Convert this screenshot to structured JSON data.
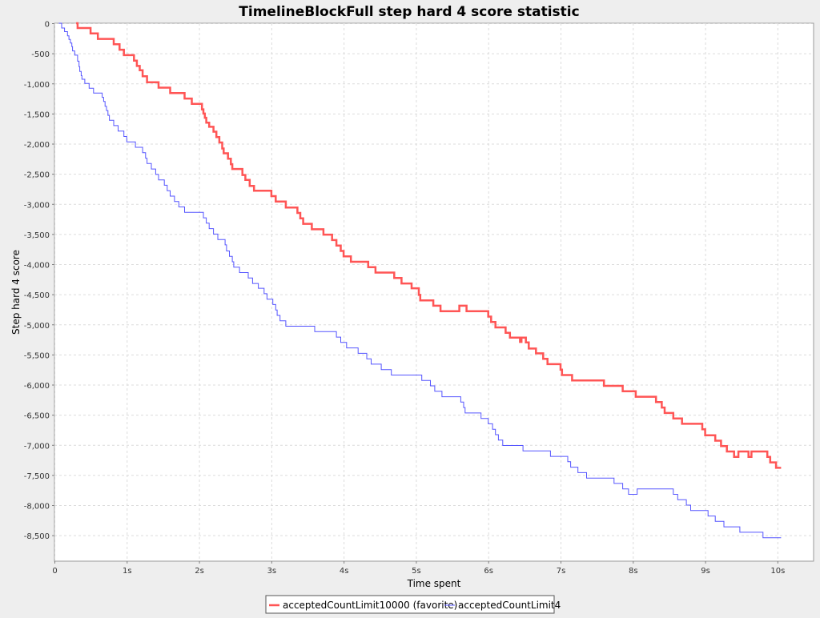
{
  "chart_data": {
    "type": "line",
    "title": "TimelineBlockFull step hard 4 score statistic",
    "xlabel": "Time spent",
    "ylabel": "Step hard 4 score",
    "xlim": [
      0,
      10.5
    ],
    "ylim": [
      -8930,
      0
    ],
    "x_ticks": [
      {
        "value": 0,
        "label": "0"
      },
      {
        "value": 1,
        "label": "1s"
      },
      {
        "value": 2,
        "label": "2s"
      },
      {
        "value": 3,
        "label": "3s"
      },
      {
        "value": 4,
        "label": "4s"
      },
      {
        "value": 5,
        "label": "5s"
      },
      {
        "value": 6,
        "label": "6s"
      },
      {
        "value": 7,
        "label": "7s"
      },
      {
        "value": 8,
        "label": "8s"
      },
      {
        "value": 9,
        "label": "9s"
      },
      {
        "value": 10,
        "label": "10s"
      }
    ],
    "y_ticks": [
      {
        "value": 0,
        "label": "0"
      },
      {
        "value": -500,
        "label": "-500"
      },
      {
        "value": -1000,
        "label": "-1,000"
      },
      {
        "value": -1500,
        "label": "-1,500"
      },
      {
        "value": -2000,
        "label": "-2,000"
      },
      {
        "value": -2500,
        "label": "-2,500"
      },
      {
        "value": -3000,
        "label": "-3,000"
      },
      {
        "value": -3500,
        "label": "-3,500"
      },
      {
        "value": -4000,
        "label": "-4,000"
      },
      {
        "value": -4500,
        "label": "-4,500"
      },
      {
        "value": -5000,
        "label": "-5,000"
      },
      {
        "value": -5500,
        "label": "-5,500"
      },
      {
        "value": -6000,
        "label": "-6,000"
      },
      {
        "value": -6500,
        "label": "-6,500"
      },
      {
        "value": -7000,
        "label": "-7,000"
      },
      {
        "value": -7500,
        "label": "-7,500"
      },
      {
        "value": -8000,
        "label": "-8,000"
      },
      {
        "value": -8500,
        "label": "-8,500"
      }
    ],
    "grid": true,
    "legend_position": "bottom-center",
    "series": [
      {
        "name": "acceptedCountLimit10000 (favorite)",
        "color": "#ff5555",
        "step": true,
        "points": [
          [
            0.3,
            0
          ],
          [
            0.32,
            -80
          ],
          [
            0.5,
            -170
          ],
          [
            0.6,
            -260
          ],
          [
            0.82,
            -350
          ],
          [
            0.9,
            -440
          ],
          [
            0.96,
            -530
          ],
          [
            1.1,
            -620
          ],
          [
            1.14,
            -710
          ],
          [
            1.18,
            -780
          ],
          [
            1.22,
            -880
          ],
          [
            1.28,
            -980
          ],
          [
            1.44,
            -1070
          ],
          [
            1.6,
            -1160
          ],
          [
            1.8,
            -1250
          ],
          [
            1.9,
            -1340
          ],
          [
            2.04,
            -1430
          ],
          [
            2.06,
            -1500
          ],
          [
            2.08,
            -1570
          ],
          [
            2.1,
            -1650
          ],
          [
            2.14,
            -1720
          ],
          [
            2.2,
            -1800
          ],
          [
            2.24,
            -1890
          ],
          [
            2.28,
            -1980
          ],
          [
            2.32,
            -2080
          ],
          [
            2.34,
            -2160
          ],
          [
            2.4,
            -2250
          ],
          [
            2.44,
            -2340
          ],
          [
            2.46,
            -2420
          ],
          [
            2.6,
            -2520
          ],
          [
            2.64,
            -2600
          ],
          [
            2.7,
            -2700
          ],
          [
            2.76,
            -2780
          ],
          [
            3.0,
            -2870
          ],
          [
            3.06,
            -2960
          ],
          [
            3.2,
            -3060
          ],
          [
            3.36,
            -3150
          ],
          [
            3.4,
            -3240
          ],
          [
            3.44,
            -3330
          ],
          [
            3.56,
            -3420
          ],
          [
            3.72,
            -3510
          ],
          [
            3.84,
            -3600
          ],
          [
            3.9,
            -3690
          ],
          [
            3.96,
            -3780
          ],
          [
            4.0,
            -3870
          ],
          [
            4.1,
            -3960
          ],
          [
            4.34,
            -4050
          ],
          [
            4.44,
            -4140
          ],
          [
            4.7,
            -4230
          ],
          [
            4.8,
            -4320
          ],
          [
            4.94,
            -4400
          ],
          [
            5.04,
            -4510
          ],
          [
            5.06,
            -4600
          ],
          [
            5.24,
            -4690
          ],
          [
            5.34,
            -4780
          ],
          [
            5.6,
            -4690
          ],
          [
            5.7,
            -4780
          ],
          [
            6.0,
            -4870
          ],
          [
            6.04,
            -4960
          ],
          [
            6.1,
            -5050
          ],
          [
            6.24,
            -5140
          ],
          [
            6.3,
            -5220
          ],
          [
            6.44,
            -5290
          ],
          [
            6.46,
            -5220
          ],
          [
            6.52,
            -5300
          ],
          [
            6.56,
            -5400
          ],
          [
            6.66,
            -5480
          ],
          [
            6.76,
            -5570
          ],
          [
            6.82,
            -5660
          ],
          [
            7.0,
            -5750
          ],
          [
            7.02,
            -5840
          ],
          [
            7.16,
            -5930
          ],
          [
            7.6,
            -6020
          ],
          [
            7.86,
            -6110
          ],
          [
            8.04,
            -6200
          ],
          [
            8.32,
            -6290
          ],
          [
            8.4,
            -6380
          ],
          [
            8.44,
            -6470
          ],
          [
            8.56,
            -6560
          ],
          [
            8.68,
            -6650
          ],
          [
            8.96,
            -6740
          ],
          [
            9.0,
            -6840
          ],
          [
            9.14,
            -6930
          ],
          [
            9.22,
            -7020
          ],
          [
            9.3,
            -7110
          ],
          [
            9.4,
            -7200
          ],
          [
            9.46,
            -7110
          ],
          [
            9.6,
            -7200
          ],
          [
            9.64,
            -7110
          ],
          [
            9.86,
            -7200
          ],
          [
            9.9,
            -7290
          ],
          [
            9.98,
            -7380
          ],
          [
            10.05,
            -7380
          ]
        ]
      },
      {
        "name": "acceptedCountLimit4",
        "color": "#5555ff",
        "step": true,
        "points": [
          [
            0.06,
            0
          ],
          [
            0.1,
            -80
          ],
          [
            0.14,
            -140
          ],
          [
            0.18,
            -210
          ],
          [
            0.2,
            -270
          ],
          [
            0.22,
            -330
          ],
          [
            0.24,
            -390
          ],
          [
            0.25,
            -460
          ],
          [
            0.28,
            -530
          ],
          [
            0.32,
            -630
          ],
          [
            0.34,
            -720
          ],
          [
            0.35,
            -800
          ],
          [
            0.37,
            -870
          ],
          [
            0.38,
            -930
          ],
          [
            0.42,
            -1000
          ],
          [
            0.48,
            -1080
          ],
          [
            0.54,
            -1160
          ],
          [
            0.66,
            -1230
          ],
          [
            0.68,
            -1300
          ],
          [
            0.7,
            -1380
          ],
          [
            0.72,
            -1450
          ],
          [
            0.74,
            -1530
          ],
          [
            0.76,
            -1610
          ],
          [
            0.82,
            -1700
          ],
          [
            0.88,
            -1790
          ],
          [
            0.96,
            -1880
          ],
          [
            1.0,
            -1970
          ],
          [
            1.12,
            -2060
          ],
          [
            1.22,
            -2150
          ],
          [
            1.26,
            -2240
          ],
          [
            1.28,
            -2330
          ],
          [
            1.34,
            -2420
          ],
          [
            1.4,
            -2510
          ],
          [
            1.44,
            -2600
          ],
          [
            1.52,
            -2690
          ],
          [
            1.56,
            -2780
          ],
          [
            1.6,
            -2870
          ],
          [
            1.66,
            -2960
          ],
          [
            1.72,
            -3050
          ],
          [
            1.8,
            -3140
          ],
          [
            2.06,
            -3230
          ],
          [
            2.1,
            -3320
          ],
          [
            2.14,
            -3410
          ],
          [
            2.2,
            -3500
          ],
          [
            2.26,
            -3590
          ],
          [
            2.36,
            -3680
          ],
          [
            2.38,
            -3780
          ],
          [
            2.42,
            -3870
          ],
          [
            2.46,
            -3960
          ],
          [
            2.48,
            -4050
          ],
          [
            2.56,
            -4140
          ],
          [
            2.68,
            -4230
          ],
          [
            2.74,
            -4320
          ],
          [
            2.82,
            -4400
          ],
          [
            2.9,
            -4490
          ],
          [
            2.94,
            -4580
          ],
          [
            3.02,
            -4670
          ],
          [
            3.06,
            -4760
          ],
          [
            3.08,
            -4850
          ],
          [
            3.12,
            -4940
          ],
          [
            3.2,
            -5030
          ],
          [
            3.6,
            -5120
          ],
          [
            3.9,
            -5210
          ],
          [
            3.96,
            -5300
          ],
          [
            4.04,
            -5390
          ],
          [
            4.2,
            -5480
          ],
          [
            4.32,
            -5570
          ],
          [
            4.38,
            -5660
          ],
          [
            4.52,
            -5750
          ],
          [
            4.66,
            -5840
          ],
          [
            5.08,
            -5930
          ],
          [
            5.2,
            -6020
          ],
          [
            5.26,
            -6110
          ],
          [
            5.36,
            -6200
          ],
          [
            5.62,
            -6290
          ],
          [
            5.66,
            -6380
          ],
          [
            5.68,
            -6470
          ],
          [
            5.9,
            -6560
          ],
          [
            6.0,
            -6650
          ],
          [
            6.06,
            -6740
          ],
          [
            6.1,
            -6830
          ],
          [
            6.14,
            -6920
          ],
          [
            6.2,
            -7010
          ],
          [
            6.48,
            -7100
          ],
          [
            6.86,
            -7190
          ],
          [
            7.1,
            -7280
          ],
          [
            7.14,
            -7370
          ],
          [
            7.24,
            -7460
          ],
          [
            7.36,
            -7550
          ],
          [
            7.74,
            -7640
          ],
          [
            7.86,
            -7730
          ],
          [
            7.94,
            -7820
          ],
          [
            8.06,
            -7730
          ],
          [
            8.56,
            -7820
          ],
          [
            8.62,
            -7910
          ],
          [
            8.74,
            -8000
          ],
          [
            8.8,
            -8090
          ],
          [
            9.04,
            -8180
          ],
          [
            9.14,
            -8270
          ],
          [
            9.26,
            -8360
          ],
          [
            9.48,
            -8450
          ],
          [
            9.8,
            -8540
          ],
          [
            10.05,
            -8540
          ]
        ]
      }
    ]
  }
}
